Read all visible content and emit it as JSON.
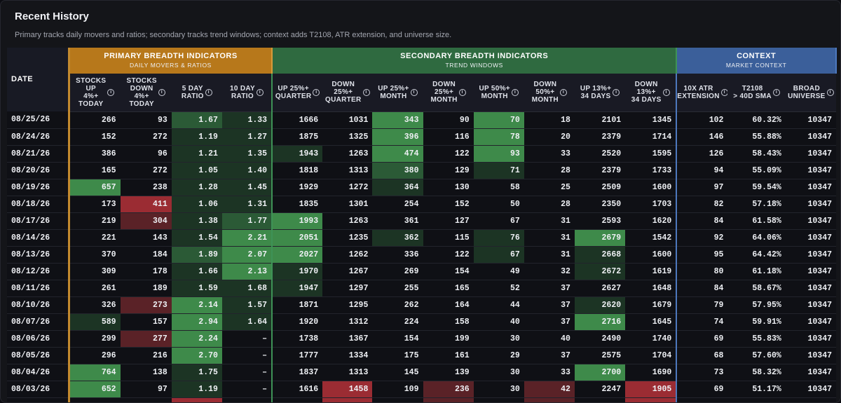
{
  "header": {
    "title": "Recent History",
    "subtitle": "Primary tracks daily movers and ratios; secondary tracks trend windows; context adds T2108, ATR extension, and universe size."
  },
  "groups": {
    "primary": {
      "title": "PRIMARY BREADTH INDICATORS",
      "sub": "DAILY MOVERS & RATIOS",
      "color": "#b7781b"
    },
    "secondary": {
      "title": "SECONDARY BREADTH INDICATORS",
      "sub": "TREND WINDOWS",
      "color": "#2f6a40"
    },
    "context": {
      "title": "CONTEXT",
      "sub": "MARKET CONTEXT",
      "color": "#3b5f9a"
    }
  },
  "date_header": "DATE",
  "info_icon": "ⓘ",
  "columns": [
    {
      "key": "up4",
      "label": "STOCKS\nUP\n4%+\nTODAY"
    },
    {
      "key": "down4",
      "label": "STOCKS\nDOWN\n4%+\nTODAY"
    },
    {
      "key": "r5",
      "label": "5 DAY\nRATIO"
    },
    {
      "key": "r10",
      "label": "10 DAY\nRATIO"
    },
    {
      "key": "up25q",
      "label": "UP 25%+\nQUARTER"
    },
    {
      "key": "down25q",
      "label": "DOWN\n25%+\nQUARTER"
    },
    {
      "key": "up25m",
      "label": "UP 25%+\nMONTH"
    },
    {
      "key": "down25m",
      "label": "DOWN\n25%+\nMONTH"
    },
    {
      "key": "up50m",
      "label": "UP 50%+\nMONTH"
    },
    {
      "key": "down50m",
      "label": "DOWN\n50%+\nMONTH"
    },
    {
      "key": "up13",
      "label": "UP 13%+\n34 DAYS"
    },
    {
      "key": "down13",
      "label": "DOWN\n13%+\n34 DAYS"
    },
    {
      "key": "atr",
      "label": "10X ATR\nEXTENSION"
    },
    {
      "key": "t2108",
      "label": "T2108\n> 40D SMA"
    },
    {
      "key": "universe",
      "label": "BROAD\nUNIVERSE"
    }
  ],
  "rows": [
    {
      "date": "08/25/26",
      "v": [
        "266",
        "93",
        "1.67",
        "1.33",
        "1666",
        "1031",
        "343",
        "90",
        "70",
        "18",
        "2101",
        "1345",
        "102",
        "60.32%",
        "10347"
      ],
      "s": [
        "",
        "",
        "g2",
        "g1",
        "",
        "",
        "g3",
        "",
        "g3",
        "",
        "",
        "",
        "",
        "",
        ""
      ]
    },
    {
      "date": "08/24/26",
      "v": [
        "152",
        "272",
        "1.19",
        "1.27",
        "1875",
        "1325",
        "396",
        "116",
        "78",
        "20",
        "2379",
        "1714",
        "146",
        "55.88%",
        "10347"
      ],
      "s": [
        "",
        "",
        "g1",
        "g1",
        "",
        "",
        "g3",
        "",
        "g3",
        "",
        "",
        "",
        "",
        "",
        ""
      ]
    },
    {
      "date": "08/21/26",
      "v": [
        "386",
        "96",
        "1.21",
        "1.35",
        "1943",
        "1263",
        "474",
        "122",
        "93",
        "33",
        "2520",
        "1595",
        "126",
        "58.43%",
        "10347"
      ],
      "s": [
        "",
        "",
        "g1",
        "g1",
        "g1",
        "",
        "g3",
        "",
        "g3",
        "",
        "",
        "",
        "",
        "",
        ""
      ]
    },
    {
      "date": "08/20/26",
      "v": [
        "165",
        "272",
        "1.05",
        "1.40",
        "1818",
        "1313",
        "380",
        "129",
        "71",
        "28",
        "2379",
        "1733",
        "94",
        "55.09%",
        "10347"
      ],
      "s": [
        "",
        "",
        "g1",
        "g1",
        "",
        "",
        "g2",
        "",
        "g1",
        "",
        "",
        "",
        "",
        "",
        ""
      ]
    },
    {
      "date": "08/19/26",
      "v": [
        "657",
        "238",
        "1.28",
        "1.45",
        "1929",
        "1272",
        "364",
        "130",
        "58",
        "25",
        "2509",
        "1600",
        "97",
        "59.54%",
        "10347"
      ],
      "s": [
        "g3",
        "",
        "g1",
        "g1",
        "",
        "",
        "g1",
        "",
        "",
        "",
        "",
        "",
        "",
        "",
        ""
      ]
    },
    {
      "date": "08/18/26",
      "v": [
        "173",
        "411",
        "1.06",
        "1.31",
        "1835",
        "1301",
        "254",
        "152",
        "50",
        "28",
        "2350",
        "1703",
        "82",
        "57.18%",
        "10347"
      ],
      "s": [
        "",
        "r3",
        "g1",
        "g1",
        "",
        "",
        "",
        "",
        "",
        "",
        "",
        "",
        "",
        "",
        ""
      ]
    },
    {
      "date": "08/17/26",
      "v": [
        "219",
        "304",
        "1.38",
        "1.77",
        "1993",
        "1263",
        "361",
        "127",
        "67",
        "31",
        "2593",
        "1620",
        "84",
        "61.58%",
        "10347"
      ],
      "s": [
        "",
        "r2",
        "g1",
        "g2",
        "g3",
        "",
        "",
        "",
        "",
        "",
        "",
        "",
        "",
        "",
        ""
      ]
    },
    {
      "date": "08/14/26",
      "v": [
        "221",
        "143",
        "1.54",
        "2.21",
        "2051",
        "1235",
        "362",
        "115",
        "76",
        "31",
        "2679",
        "1542",
        "92",
        "64.06%",
        "10347"
      ],
      "s": [
        "",
        "",
        "g1",
        "g3",
        "g3",
        "",
        "g1",
        "",
        "g1",
        "",
        "g3",
        "",
        "",
        "",
        ""
      ]
    },
    {
      "date": "08/13/26",
      "v": [
        "370",
        "184",
        "1.89",
        "2.07",
        "2027",
        "1262",
        "336",
        "122",
        "67",
        "31",
        "2668",
        "1600",
        "95",
        "64.42%",
        "10347"
      ],
      "s": [
        "",
        "",
        "g2",
        "g3",
        "g3",
        "",
        "",
        "",
        "g1",
        "",
        "g1",
        "",
        "",
        "",
        ""
      ]
    },
    {
      "date": "08/12/26",
      "v": [
        "309",
        "178",
        "1.66",
        "2.13",
        "1970",
        "1267",
        "269",
        "154",
        "49",
        "32",
        "2672",
        "1619",
        "80",
        "61.18%",
        "10347"
      ],
      "s": [
        "",
        "",
        "g1",
        "g3",
        "g1",
        "",
        "",
        "",
        "",
        "",
        "g1",
        "",
        "",
        "",
        ""
      ]
    },
    {
      "date": "08/11/26",
      "v": [
        "261",
        "189",
        "1.59",
        "1.68",
        "1947",
        "1297",
        "255",
        "165",
        "52",
        "37",
        "2627",
        "1648",
        "84",
        "58.67%",
        "10347"
      ],
      "s": [
        "",
        "",
        "g1",
        "g1",
        "g1",
        "",
        "",
        "",
        "",
        "",
        "",
        "",
        "",
        "",
        ""
      ]
    },
    {
      "date": "08/10/26",
      "v": [
        "326",
        "273",
        "2.14",
        "1.57",
        "1871",
        "1295",
        "262",
        "164",
        "44",
        "37",
        "2620",
        "1679",
        "79",
        "57.95%",
        "10347"
      ],
      "s": [
        "",
        "r2",
        "g3",
        "g1",
        "",
        "",
        "",
        "",
        "",
        "",
        "g1",
        "",
        "",
        "",
        ""
      ]
    },
    {
      "date": "08/07/26",
      "v": [
        "589",
        "157",
        "2.94",
        "1.64",
        "1920",
        "1312",
        "224",
        "158",
        "40",
        "37",
        "2716",
        "1645",
        "74",
        "59.91%",
        "10347"
      ],
      "s": [
        "g1",
        "",
        "g3",
        "g1",
        "",
        "",
        "",
        "",
        "",
        "",
        "g3",
        "",
        "",
        "",
        ""
      ]
    },
    {
      "date": "08/06/26",
      "v": [
        "299",
        "277",
        "2.24",
        "–",
        "1738",
        "1367",
        "154",
        "199",
        "30",
        "40",
        "2490",
        "1740",
        "69",
        "55.83%",
        "10347"
      ],
      "s": [
        "",
        "r2",
        "g3",
        "",
        "",
        "",
        "",
        "",
        "",
        "",
        "",
        "",
        "",
        "",
        ""
      ]
    },
    {
      "date": "08/05/26",
      "v": [
        "296",
        "216",
        "2.70",
        "–",
        "1777",
        "1334",
        "175",
        "161",
        "29",
        "37",
        "2575",
        "1704",
        "68",
        "57.60%",
        "10347"
      ],
      "s": [
        "",
        "",
        "g3",
        "",
        "",
        "",
        "",
        "",
        "",
        "",
        "",
        "",
        "",
        "",
        ""
      ]
    },
    {
      "date": "08/04/26",
      "v": [
        "764",
        "138",
        "1.75",
        "–",
        "1837",
        "1313",
        "145",
        "139",
        "30",
        "33",
        "2700",
        "1690",
        "73",
        "58.32%",
        "10347"
      ],
      "s": [
        "g3",
        "",
        "g1",
        "",
        "",
        "",
        "",
        "",
        "",
        "",
        "g3",
        "",
        "",
        "",
        ""
      ]
    },
    {
      "date": "08/03/26",
      "v": [
        "652",
        "97",
        "1.19",
        "–",
        "1616",
        "1458",
        "109",
        "236",
        "30",
        "42",
        "2247",
        "1905",
        "69",
        "51.17%",
        "10347"
      ],
      "s": [
        "g3",
        "",
        "g1",
        "",
        "",
        "r3",
        "",
        "r2",
        "",
        "r2",
        "",
        "r3",
        "",
        "",
        ""
      ]
    }
  ],
  "partial_row": {
    "s": [
      "",
      "",
      "r3",
      "",
      "",
      "r3",
      "",
      "r2",
      "",
      "r2",
      "",
      "r3",
      "",
      "",
      ""
    ]
  }
}
